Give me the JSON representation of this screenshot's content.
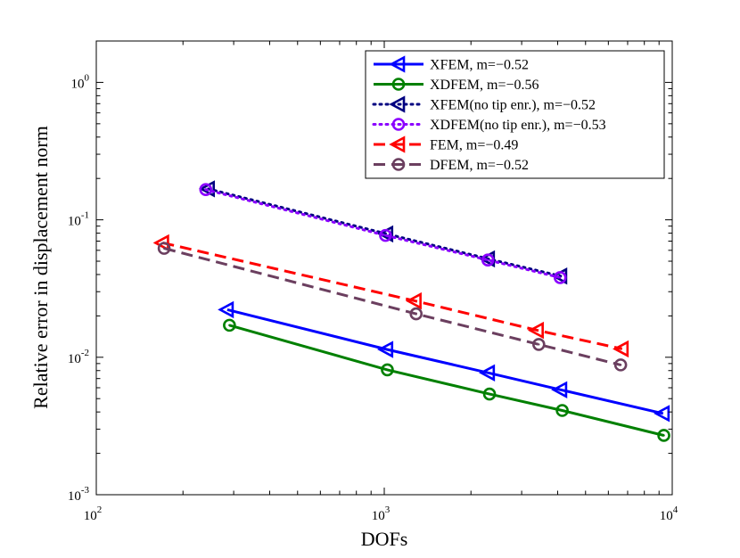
{
  "chart_data": {
    "type": "line",
    "title": "",
    "xlabel": "DOFs",
    "ylabel": "Relative error in displacement norm",
    "xscale": "log",
    "yscale": "log",
    "xlim": [
      100,
      10000
    ],
    "ylim": [
      0.001,
      2
    ],
    "x_ticks": [
      {
        "value": 100,
        "base": "10",
        "exp": "2"
      },
      {
        "value": 1000,
        "base": "10",
        "exp": "3"
      },
      {
        "value": 10000,
        "base": "10",
        "exp": "4"
      }
    ],
    "y_ticks": [
      {
        "value": 0.001,
        "base": "10",
        "exp": "-3"
      },
      {
        "value": 0.01,
        "base": "10",
        "exp": "-2"
      },
      {
        "value": 0.1,
        "base": "10",
        "exp": "-1"
      },
      {
        "value": 1,
        "base": "10",
        "exp": "0"
      }
    ],
    "grid": false,
    "legend_position": "top-right",
    "series": [
      {
        "name": "XFEM, m=−0.52",
        "color": "#0000ff",
        "line": "solid",
        "marker": "triangle-left",
        "x": [
          285,
          1020,
          2300,
          4100,
          9300
        ],
        "y": [
          0.0222,
          0.0114,
          0.0077,
          0.0058,
          0.0039
        ]
      },
      {
        "name": "XDFEM, m=−0.56",
        "color": "#008000",
        "line": "solid",
        "marker": "circle-dot",
        "x": [
          290,
          1025,
          2320,
          4150,
          9350
        ],
        "y": [
          0.0171,
          0.0081,
          0.0054,
          0.0041,
          0.0027
        ]
      },
      {
        "name": "XFEM(no tip enr.), m=−0.52",
        "color": "#000080",
        "line": "dotted",
        "marker": "triangle-left",
        "x": [
          245,
          1020,
          2300,
          4100
        ],
        "y": [
          0.168,
          0.079,
          0.052,
          0.039
        ]
      },
      {
        "name": "XDFEM(no tip enr.), m=−0.53",
        "color": "#8b00ff",
        "line": "dotted",
        "marker": "circle-dot",
        "x": [
          240,
          1010,
          2290,
          4080
        ],
        "y": [
          0.166,
          0.077,
          0.051,
          0.038
        ]
      },
      {
        "name": "FEM, m=−0.49",
        "color": "#ff0000",
        "line": "dashed",
        "marker": "triangle-left",
        "x": [
          170,
          1280,
          3400,
          6700
        ],
        "y": [
          0.068,
          0.0257,
          0.0157,
          0.0115
        ]
      },
      {
        "name": "DFEM, m=−0.52",
        "color": "#6b3f5f",
        "line": "dashed",
        "marker": "circle-dot",
        "x": [
          172,
          1290,
          3440,
          6620
        ],
        "y": [
          0.062,
          0.0207,
          0.0124,
          0.0088
        ]
      }
    ]
  }
}
